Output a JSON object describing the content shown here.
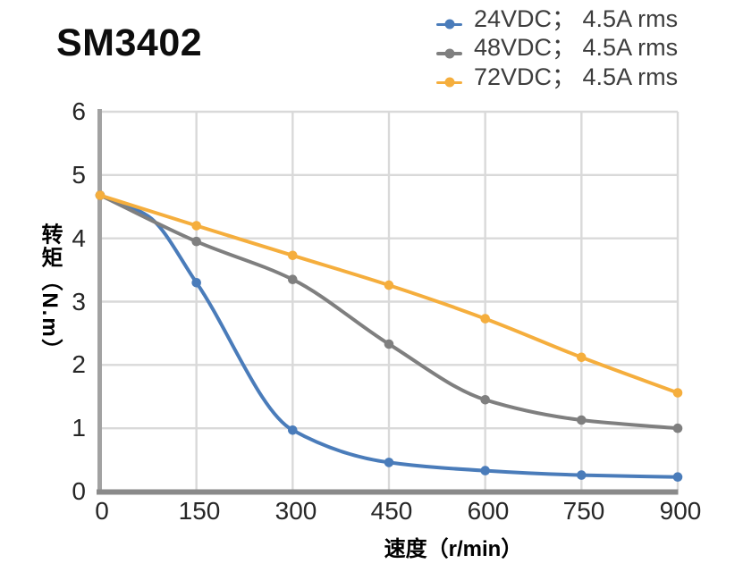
{
  "title": "SM3402",
  "chart_data": {
    "type": "line",
    "title": "SM3402",
    "xlabel": "速度（r/min）",
    "ylabel": "转矩（N.m）",
    "xlim": [
      0,
      900
    ],
    "ylim": [
      0,
      6
    ],
    "x_ticks": [
      0,
      150,
      300,
      450,
      600,
      750,
      900
    ],
    "y_ticks": [
      0,
      1,
      2,
      3,
      4,
      5,
      6
    ],
    "grid": true,
    "legend_position": "top-right",
    "series": [
      {
        "name": "24VDC； 4.5A rms",
        "color": "#4a7cba",
        "points": [
          [
            0,
            4.68
          ],
          [
            75,
            4.35
          ],
          [
            150,
            3.3
          ],
          [
            300,
            0.97
          ],
          [
            450,
            0.46
          ],
          [
            600,
            0.33
          ],
          [
            750,
            0.26
          ],
          [
            900,
            0.23
          ]
        ],
        "marker_x": [
          0,
          150,
          300,
          450,
          600,
          750,
          900
        ]
      },
      {
        "name": "48VDC； 4.5A rms",
        "color": "#7f7f7f",
        "points": [
          [
            0,
            4.68
          ],
          [
            150,
            3.95
          ],
          [
            300,
            3.35
          ],
          [
            450,
            2.33
          ],
          [
            600,
            1.45
          ],
          [
            750,
            1.13
          ],
          [
            900,
            1.0
          ]
        ]
      },
      {
        "name": "72VDC； 4.5A rms",
        "color": "#f5ae3d",
        "points": [
          [
            0,
            4.68
          ],
          [
            150,
            4.2
          ],
          [
            300,
            3.73
          ],
          [
            450,
            3.26
          ],
          [
            600,
            2.73
          ],
          [
            750,
            2.12
          ],
          [
            900,
            1.56
          ]
        ]
      }
    ],
    "style": {
      "grid_color": "#d9d9d9",
      "left_axis_color": "#a2a2a2",
      "bottom_axis_color": "#8a8a8a"
    }
  }
}
